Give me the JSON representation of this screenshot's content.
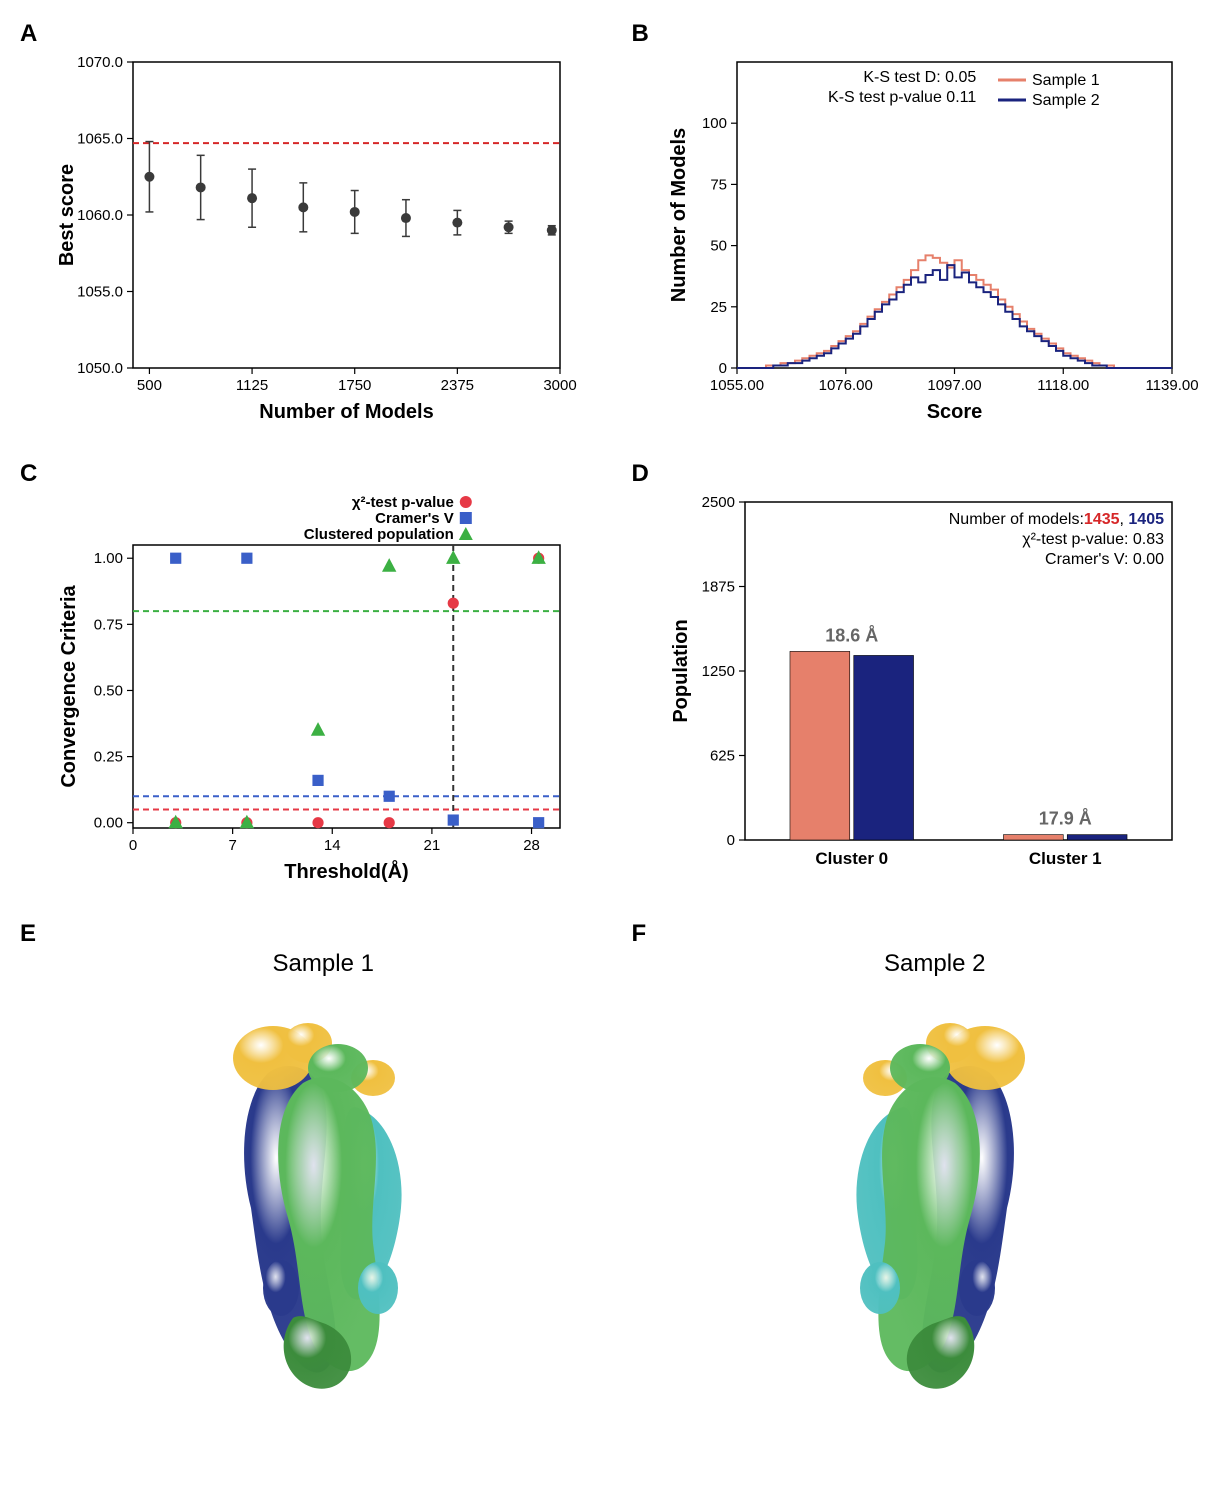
{
  "panelA": {
    "label": "A",
    "type": "scatter-errorbar",
    "xlabel": "Number of Models",
    "ylabel": "Best score",
    "xlim": [
      400,
      3000
    ],
    "ylim": [
      1050,
      1070
    ],
    "xticks": [
      500,
      1125,
      1750,
      2375,
      3000
    ],
    "yticks": [
      1050.0,
      1055.0,
      1060.0,
      1065.0,
      1070.0
    ],
    "ytick_labels": [
      "1050.0",
      "1055.0",
      "1060.0",
      "1065.0",
      "1070.0"
    ],
    "hline_y": 1064.7,
    "hline_color": "#d62728",
    "marker_color": "#3a3a3a",
    "marker_radius": 5,
    "errorbar_color": "#3a3a3a",
    "points": [
      {
        "x": 500,
        "y": 1062.5,
        "err": 2.3
      },
      {
        "x": 812,
        "y": 1061.8,
        "err": 2.1
      },
      {
        "x": 1125,
        "y": 1061.1,
        "err": 1.9
      },
      {
        "x": 1437,
        "y": 1060.5,
        "err": 1.6
      },
      {
        "x": 1750,
        "y": 1060.2,
        "err": 1.4
      },
      {
        "x": 2062,
        "y": 1059.8,
        "err": 1.2
      },
      {
        "x": 2375,
        "y": 1059.5,
        "err": 0.8
      },
      {
        "x": 2687,
        "y": 1059.2,
        "err": 0.4
      },
      {
        "x": 2950,
        "y": 1059.0,
        "err": 0.3
      }
    ],
    "label_fontsize": 20,
    "tick_fontsize": 15,
    "background_color": "#ffffff"
  },
  "panelB": {
    "label": "B",
    "type": "histogram",
    "xlabel": "Score",
    "ylabel": "Number of Models",
    "xlim": [
      1055,
      1139
    ],
    "ylim": [
      0,
      125
    ],
    "xticks": [
      1055.0,
      1076.0,
      1097.0,
      1118.0,
      1139.0
    ],
    "xtick_labels": [
      "1055.00",
      "1076.00",
      "1097.00",
      "1118.00",
      "1139.00"
    ],
    "yticks": [
      0,
      25,
      50,
      75,
      100
    ],
    "stats_text1": "K-S test D: 0.05",
    "stats_text2": "K-S test p-value 0.11",
    "legend": [
      {
        "label": "Sample 1",
        "color": "#e6806b"
      },
      {
        "label": "Sample 2",
        "color": "#1a237e"
      }
    ],
    "sample1_color": "#e6806b",
    "sample2_color": "#1a237e",
    "bin_width": 1.4,
    "sample1_bins": [
      0,
      0,
      0,
      0,
      1,
      1,
      2,
      2,
      3,
      4,
      5,
      6,
      7,
      9,
      11,
      13,
      15,
      18,
      21,
      24,
      27,
      30,
      33,
      36,
      40,
      44,
      46,
      45,
      43,
      41,
      44,
      40,
      38,
      36,
      34,
      32,
      28,
      25,
      22,
      19,
      16,
      14,
      12,
      10,
      8,
      6,
      5,
      4,
      3,
      2,
      1,
      1,
      0,
      0,
      0,
      0,
      0,
      0,
      0,
      0
    ],
    "sample2_bins": [
      0,
      0,
      0,
      0,
      0,
      1,
      1,
      2,
      2,
      3,
      4,
      5,
      6,
      8,
      10,
      12,
      14,
      17,
      20,
      23,
      26,
      28,
      31,
      34,
      37,
      35,
      38,
      40,
      36,
      42,
      37,
      39,
      35,
      33,
      31,
      29,
      26,
      23,
      20,
      17,
      15,
      13,
      11,
      9,
      7,
      5,
      4,
      3,
      2,
      1,
      1,
      0,
      0,
      0,
      0,
      0,
      0,
      0,
      0,
      0
    ],
    "stats_fontsize": 16,
    "legend_fontsize": 16
  },
  "panelC": {
    "label": "C",
    "type": "scatter-multi",
    "xlabel": "Threshold(Å)",
    "ylabel": "Convergence Criteria",
    "xlim": [
      0,
      30
    ],
    "ylim": [
      -0.02,
      1.05
    ],
    "xticks": [
      0,
      7,
      14,
      21,
      28
    ],
    "yticks": [
      0.0,
      0.25,
      0.5,
      0.75,
      1.0
    ],
    "legend": [
      {
        "label": "χ²-test p-value",
        "color": "#e63946",
        "marker": "circle"
      },
      {
        "label": "Cramer's V",
        "color": "#3a5fc8",
        "marker": "square"
      },
      {
        "label": "Clustered population",
        "color": "#3cb043",
        "marker": "triangle"
      }
    ],
    "hlines": [
      {
        "y": 0.8,
        "color": "#3cb043"
      },
      {
        "y": 0.1,
        "color": "#3a5fc8"
      },
      {
        "y": 0.05,
        "color": "#e63946"
      }
    ],
    "vline_x": 22.5,
    "vline_color": "#333333",
    "series_chi2": {
      "color": "#e63946",
      "points": [
        {
          "x": 3,
          "y": 0.0
        },
        {
          "x": 8,
          "y": 0.0
        },
        {
          "x": 13,
          "y": 0.0
        },
        {
          "x": 18,
          "y": 0.0
        },
        {
          "x": 22.5,
          "y": 0.83
        },
        {
          "x": 28.5,
          "y": 1.0
        }
      ]
    },
    "series_cramersV": {
      "color": "#3a5fc8",
      "points": [
        {
          "x": 3,
          "y": 1.0
        },
        {
          "x": 8,
          "y": 1.0
        },
        {
          "x": 13,
          "y": 0.16
        },
        {
          "x": 18,
          "y": 0.1
        },
        {
          "x": 22.5,
          "y": 0.01
        },
        {
          "x": 28.5,
          "y": 0.0
        }
      ]
    },
    "series_clustered": {
      "color": "#3cb043",
      "points": [
        {
          "x": 3,
          "y": 0.0
        },
        {
          "x": 8,
          "y": 0.0
        },
        {
          "x": 13,
          "y": 0.35
        },
        {
          "x": 18,
          "y": 0.97
        },
        {
          "x": 22.5,
          "y": 1.0
        },
        {
          "x": 28.5,
          "y": 1.0
        }
      ]
    },
    "marker_size": 8
  },
  "panelD": {
    "label": "D",
    "type": "grouped-bar",
    "xlabel": "",
    "ylabel": "Population",
    "ylim": [
      0,
      2500
    ],
    "yticks": [
      0,
      625,
      1250,
      1875,
      2500
    ],
    "categories": [
      "Cluster 0",
      "Cluster 1"
    ],
    "bars": [
      {
        "cluster": 0,
        "sample": 1,
        "value": 1395,
        "color": "#e6806b"
      },
      {
        "cluster": 0,
        "sample": 2,
        "value": 1365,
        "color": "#1a237e"
      },
      {
        "cluster": 1,
        "sample": 1,
        "value": 40,
        "color": "#e6806b"
      },
      {
        "cluster": 1,
        "sample": 2,
        "value": 40,
        "color": "#1a237e"
      }
    ],
    "value_labels": [
      {
        "cluster": 0,
        "text": "18.6 Å"
      },
      {
        "cluster": 1,
        "text": "17.9 Å"
      }
    ],
    "stats_prefix": "Number of models:",
    "stats_n1": "1435",
    "stats_n1_color": "#d62728",
    "stats_sep": ", ",
    "stats_n2": "1405",
    "stats_n2_color": "#1a237e",
    "stats_line2": "χ²-test p-value: 0.83",
    "stats_line3": "Cramer's V: 0.00",
    "bar_width": 0.35,
    "value_label_color": "#666666",
    "stats_fontsize": 16
  },
  "panelE": {
    "label": "E",
    "title": "Sample 1",
    "title_fontsize": 24,
    "colors": {
      "yellow": "#f0c040",
      "green": "#5cb85c",
      "darkgreen": "#3c8c3c",
      "blue": "#2a3a8c",
      "teal": "#4fc0c0"
    }
  },
  "panelF": {
    "label": "F",
    "title": "Sample 2",
    "title_fontsize": 24,
    "colors": {
      "yellow": "#f0c040",
      "green": "#5cb85c",
      "darkgreen": "#3c8c3c",
      "blue": "#2a3a8c",
      "teal": "#4fc0c0"
    }
  }
}
